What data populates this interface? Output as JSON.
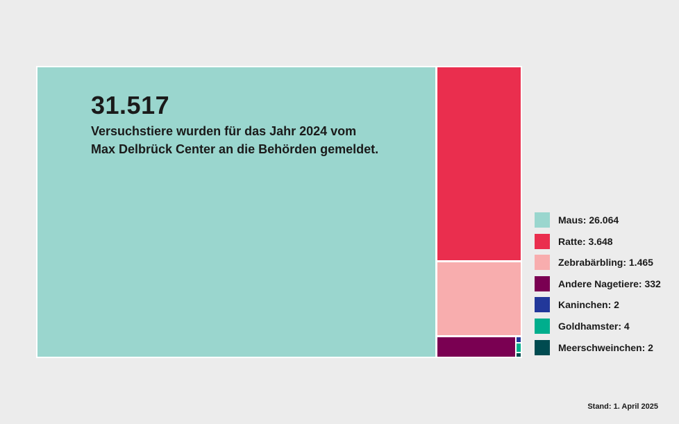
{
  "page": {
    "background_color": "#ECECEC",
    "text_color": "#1A1A1A"
  },
  "headline": {
    "total": "31.517",
    "subtitle_line1": "Versuchstiere wurden für das Jahr 2024 vom",
    "subtitle_line2": "Max Delbrück Center an die Behörden gemeldet."
  },
  "chart_data": {
    "type": "treemap",
    "title": "31.517 Versuchstiere wurden für das Jahr 2024 vom Max Delbrück Center an die Behörden gemeldet.",
    "total": 31517,
    "series": [
      {
        "name": "Maus",
        "value": 26064,
        "display": "26.064",
        "color": "#9AD6CE"
      },
      {
        "name": "Ratte",
        "value": 3648,
        "display": "3.648",
        "color": "#EA2E4E"
      },
      {
        "name": "Zebrabärbling",
        "value": 1465,
        "display": "1.465",
        "color": "#F8ADAE"
      },
      {
        "name": "Andere Nagetiere",
        "value": 332,
        "display": "332",
        "color": "#7A0052"
      },
      {
        "name": "Kaninchen",
        "value": 2,
        "display": "2",
        "color": "#22389A"
      },
      {
        "name": "Goldhamster",
        "value": 4,
        "display": "4",
        "color": "#00AE8D"
      },
      {
        "name": "Meerschweinchen",
        "value": 2,
        "display": "2",
        "color": "#004B50"
      }
    ],
    "legend_position": "right"
  },
  "legend": {
    "items": [
      {
        "label": "Maus: 26.064"
      },
      {
        "label": "Ratte: 3.648"
      },
      {
        "label": "Zebrabärbling: 1.465"
      },
      {
        "label": "Andere Nagetiere: 332"
      },
      {
        "label": "Kaninchen: 2"
      },
      {
        "label": "Goldhamster: 4"
      },
      {
        "label": "Meerschweinchen: 2"
      }
    ]
  },
  "footer": {
    "stand": "Stand: 1. April 2025"
  }
}
